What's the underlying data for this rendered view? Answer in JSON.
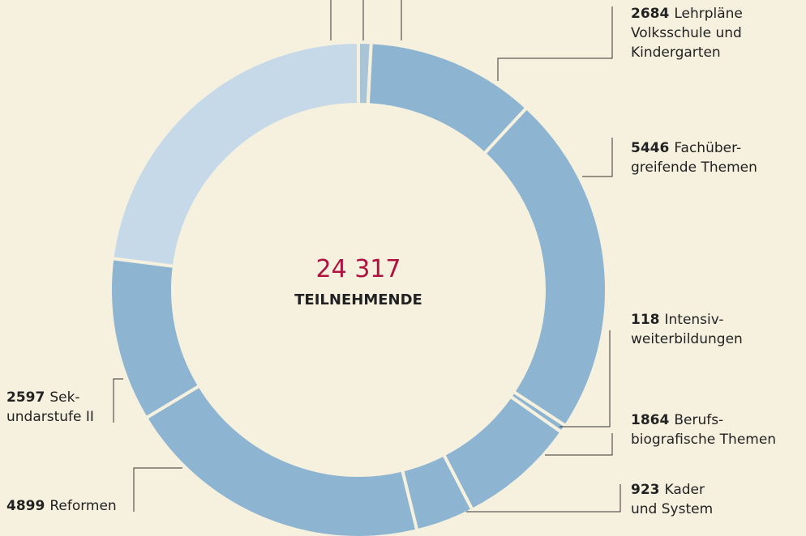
{
  "chart_data": {
    "type": "donut",
    "center_value": "24 317",
    "center_label": "TEILNEHMENDE",
    "categories": [
      null,
      [
        "Lehrpläne",
        "Volksschule und",
        "Kindergarten"
      ],
      [
        "Fachüber-",
        "greifende Themen"
      ],
      [
        "Intensiv-",
        "weiterbildungen"
      ],
      [
        "Berufs-",
        "biografische Themen"
      ],
      [
        "Kader",
        "und System"
      ],
      [
        "Reformen"
      ],
      [
        "Sek-",
        "undarstufe II"
      ],
      null
    ],
    "values": [
      200,
      2684,
      5446,
      118,
      1864,
      923,
      4899,
      2597,
      5586
    ],
    "colors": [
      "#a9c4d6",
      "#8db5d1",
      "#8db5d1",
      "#8db5d1",
      "#8db5d1",
      "#8db5d1",
      "#8db5d1",
      "#8db5d1",
      "#c5d9e8"
    ],
    "center_color": "#b0123f"
  }
}
